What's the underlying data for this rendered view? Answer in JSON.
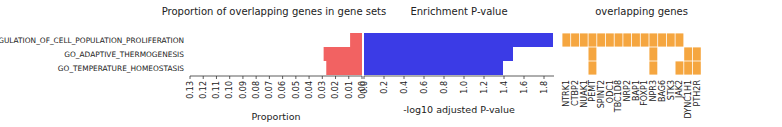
{
  "chart_data": [
    {
      "type": "bar",
      "orientation": "horizontal",
      "title": "Proportion of overlapping genes in gene sets",
      "x_label": "Proportion",
      "categories": [
        "GO_REGULATION_OF_CELL_POPULATION_PROLIFERATION",
        "GO_ADAPTIVE_THERMOGENESIS",
        "GO_TEMPERATURE_HOMEOSTASIS"
      ],
      "values": [
        0.009,
        0.029,
        0.027
      ],
      "color": "#f26262",
      "xlim": [
        0.13,
        0.0
      ],
      "xticks": [
        {
          "value": 0.13,
          "label": "0.13"
        },
        {
          "value": 0.12,
          "label": "0.12"
        },
        {
          "value": 0.11,
          "label": "0.11"
        },
        {
          "value": 0.1,
          "label": "0.10"
        },
        {
          "value": 0.09,
          "label": "0.09"
        },
        {
          "value": 0.08,
          "label": "0.08"
        },
        {
          "value": 0.07,
          "label": "0.07"
        },
        {
          "value": 0.06,
          "label": "0.06"
        },
        {
          "value": 0.05,
          "label": "0.05"
        },
        {
          "value": 0.04,
          "label": "0.04"
        },
        {
          "value": 0.03,
          "label": "0.03"
        },
        {
          "value": 0.02,
          "label": "0.02"
        },
        {
          "value": 0.01,
          "label": "0.01"
        },
        {
          "value": 0,
          "label": "0.00"
        }
      ]
    },
    {
      "type": "bar",
      "orientation": "horizontal",
      "title": "Enrichment P-value",
      "x_label": "-log10 adjusted P-value",
      "values": [
        1.89,
        1.49,
        1.39
      ],
      "color": "#3b3be6",
      "xlim": [
        0,
        1.9
      ],
      "xticks": [
        {
          "value": 0,
          "label": "0.0"
        },
        {
          "value": 0.2,
          "label": "0.2"
        },
        {
          "value": 0.4,
          "label": "0.4"
        },
        {
          "value": 0.6,
          "label": "0.6"
        },
        {
          "value": 0.8,
          "label": "0.8"
        },
        {
          "value": 1.0,
          "label": "1.0"
        },
        {
          "value": 1.2,
          "label": "1.2"
        },
        {
          "value": 1.4,
          "label": "1.4"
        },
        {
          "value": 1.6,
          "label": "1.6"
        },
        {
          "value": 1.8,
          "label": "1.8"
        }
      ]
    },
    {
      "type": "heatmap",
      "title": "overlapping genes",
      "columns": [
        "NTRK1",
        "CTBP2",
        "NUAK1",
        "PEMT",
        "SPINT2",
        "ODC1",
        "TBC1D8",
        "NRP2",
        "BAP1",
        "FOXP1",
        "NPR3",
        "BAG6",
        "STK3",
        "JAK2",
        "DYNC1H1",
        "PTH2R"
      ],
      "cells": [
        [
          1,
          1,
          1,
          1,
          1,
          1,
          1,
          1,
          1,
          1,
          1,
          1,
          1,
          1,
          0,
          0
        ],
        [
          0,
          0,
          0,
          1,
          0,
          0,
          0,
          0,
          0,
          0,
          1,
          0,
          0,
          0,
          1,
          1
        ],
        [
          0,
          0,
          0,
          1,
          0,
          0,
          0,
          0,
          0,
          0,
          1,
          0,
          0,
          1,
          1,
          1
        ]
      ],
      "color": "#f5a640"
    }
  ]
}
